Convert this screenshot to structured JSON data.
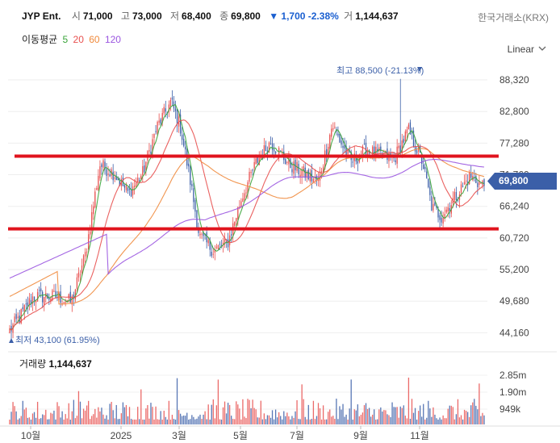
{
  "header": {
    "ticker": "JYP Ent.",
    "open_label": "시",
    "open": "71,000",
    "high_label": "고",
    "high": "73,000",
    "low_label": "저",
    "low": "68,400",
    "close_label": "종",
    "close": "69,800",
    "change": "▼ 1,700 -2.38%",
    "volume_label": "거",
    "volume": "1,144,637",
    "exchange": "한국거래소(KRX)"
  },
  "moving_average": {
    "label": "이동평균",
    "periods": [
      {
        "value": "5",
        "color": "#3aa43a"
      },
      {
        "value": "20",
        "color": "#e8504f"
      },
      {
        "value": "60",
        "color": "#f08a3c"
      },
      {
        "value": "120",
        "color": "#9a55e0"
      }
    ]
  },
  "scale_mode": "Linear",
  "price_axis": {
    "ticks": [
      "88,320",
      "82,800",
      "77,280",
      "71,760",
      "66,240",
      "60,720",
      "55,200",
      "49,680",
      "44,160"
    ],
    "current_price": "69,800",
    "current_price_color": "#3b5fa8"
  },
  "annotations": {
    "high_text": "최고 88,500 (-21.13%)",
    "low_text": "최저 43,100 (61.95%)"
  },
  "volume_panel": {
    "title_label": "거래량",
    "title_value": "1,144,637",
    "ticks": [
      "2.85m",
      "1.90m",
      "949k"
    ]
  },
  "time_axis": [
    "10월",
    "2025",
    "3월",
    "5월",
    "7월",
    "9월",
    "11월"
  ],
  "colors": {
    "up": "#e8504f",
    "down": "#3b5fa8",
    "ma5": "#3aa43a",
    "ma20": "#e8504f",
    "ma60": "#f08a3c",
    "ma120": "#9a55e0",
    "hline": "#e0141e"
  },
  "chart_data": {
    "type": "line",
    "period_labels": [
      "10월",
      "2025",
      "3월",
      "5월",
      "7월",
      "9월",
      "11월"
    ],
    "close_keypoints": [
      {
        "t": 0,
        "v": 44500
      },
      {
        "t": 0.03,
        "v": 48000
      },
      {
        "t": 0.05,
        "v": 50500
      },
      {
        "t": 0.1,
        "v": 50500
      },
      {
        "t": 0.13,
        "v": 49500
      },
      {
        "t": 0.16,
        "v": 58000
      },
      {
        "t": 0.19,
        "v": 73500
      },
      {
        "t": 0.22,
        "v": 72000
      },
      {
        "t": 0.25,
        "v": 68500
      },
      {
        "t": 0.28,
        "v": 72000
      },
      {
        "t": 0.31,
        "v": 80000
      },
      {
        "t": 0.34,
        "v": 84500
      },
      {
        "t": 0.36,
        "v": 80000
      },
      {
        "t": 0.38,
        "v": 71000
      },
      {
        "t": 0.4,
        "v": 61000
      },
      {
        "t": 0.43,
        "v": 58500
      },
      {
        "t": 0.46,
        "v": 60000
      },
      {
        "t": 0.49,
        "v": 68000
      },
      {
        "t": 0.52,
        "v": 74000
      },
      {
        "t": 0.55,
        "v": 77500
      },
      {
        "t": 0.57,
        "v": 75500
      },
      {
        "t": 0.59,
        "v": 73500
      },
      {
        "t": 0.62,
        "v": 72000
      },
      {
        "t": 0.65,
        "v": 70500
      },
      {
        "t": 0.68,
        "v": 80500
      },
      {
        "t": 0.7,
        "v": 77000
      },
      {
        "t": 0.72,
        "v": 74000
      },
      {
        "t": 0.75,
        "v": 76000
      },
      {
        "t": 0.79,
        "v": 75000
      },
      {
        "t": 0.81,
        "v": 74500
      },
      {
        "t": 0.84,
        "v": 79500
      },
      {
        "t": 0.87,
        "v": 74000
      },
      {
        "t": 0.89,
        "v": 66000
      },
      {
        "t": 0.91,
        "v": 64500
      },
      {
        "t": 0.94,
        "v": 68000
      },
      {
        "t": 0.97,
        "v": 71500
      },
      {
        "t": 1.0,
        "v": 69800
      }
    ],
    "max_price": 88500,
    "min_price": 43100,
    "current_price": 69800,
    "horizontal_levels": [
      75000,
      62300
    ],
    "ylim": [
      41400,
      91000
    ]
  }
}
